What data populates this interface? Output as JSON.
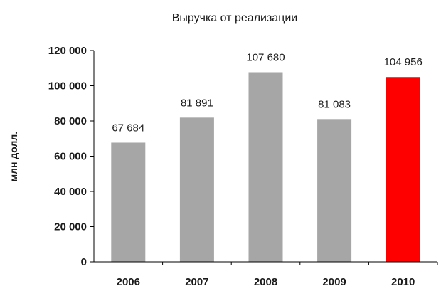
{
  "chart_data": {
    "type": "bar",
    "title": "Выручка от реализации",
    "xlabel": "",
    "ylabel": "млн долл.",
    "categories": [
      "2006",
      "2007",
      "2008",
      "2009",
      "2010"
    ],
    "values": [
      67684,
      81891,
      107680,
      81083,
      104956
    ],
    "value_labels": [
      "67 684",
      "81 891",
      "107 680",
      "81 083",
      "104 956"
    ],
    "ylim": [
      0,
      120000
    ],
    "yticks": [
      0,
      20000,
      40000,
      60000,
      80000,
      100000,
      120000
    ],
    "ytick_labels": [
      "0",
      "20 000",
      "40 000",
      "60 000",
      "80 000",
      "100 000",
      "120 000"
    ],
    "grid": false,
    "legend": "none",
    "colors": {
      "default_bar": "#a6a6a6",
      "highlight_bar": "#ff0000",
      "highlight_category": "2010",
      "axis": "#000000",
      "text": "#1a1a1a"
    }
  }
}
